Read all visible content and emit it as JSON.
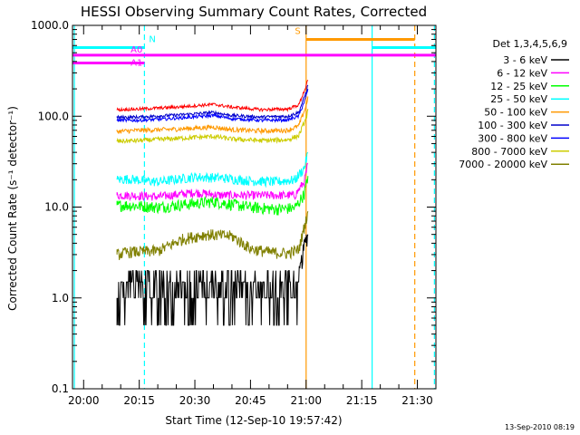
{
  "chart_data": {
    "type": "line",
    "title": "HESSI Observing Summary Count Rates, Corrected",
    "xlabel": "Start Time (12-Sep-10 19:57:42)",
    "ylabel": "Corrected Count Rate (s⁻¹ detector⁻¹)",
    "yscale": "log",
    "ylim": [
      0.1,
      1000
    ],
    "xlim_minutes": [
      -3,
      95
    ],
    "x_ticks_minutes": [
      0,
      15,
      30,
      45,
      60,
      75,
      90
    ],
    "x_tick_labels": [
      "20:00",
      "20:15",
      "20:30",
      "20:45",
      "21:00",
      "21:15",
      "21:30"
    ],
    "y_ticks": [
      0.1,
      1,
      10,
      100,
      1000
    ],
    "y_tick_labels": [
      "0.1",
      "1.0",
      "10.0",
      "100.0",
      "1000.0"
    ],
    "legend": {
      "title": "Det 1,3,4,5,6,9",
      "position": "right"
    },
    "series": [
      {
        "name": "3 - 6 keV",
        "color": "#000000",
        "x": [
          9,
          12,
          15,
          20,
          30,
          38,
          43,
          47,
          52,
          55,
          58,
          59.5,
          60.5
        ],
        "y": [
          1.0,
          1.4,
          0.9,
          1.3,
          1.2,
          1.2,
          0.7,
          0.8,
          0.7,
          0.9,
          1.6,
          3.5,
          5.0
        ]
      },
      {
        "name": "6 - 12 keV",
        "color": "#ff00ff",
        "x": [
          9,
          12,
          20,
          30,
          37,
          45,
          52,
          57,
          59.5,
          60.5
        ],
        "y": [
          13.5,
          13.5,
          13.0,
          14.5,
          13.5,
          13.5,
          13.5,
          13.5,
          19,
          30
        ]
      },
      {
        "name": "12 - 25 keV",
        "color": "#00ff00",
        "x": [
          9,
          12,
          20,
          30,
          35,
          45,
          52,
          57,
          59.5,
          60.5
        ],
        "y": [
          10.5,
          10.5,
          10,
          11,
          11.5,
          10,
          9.5,
          9.8,
          14,
          22
        ]
      },
      {
        "name": "25 - 50 keV",
        "color": "#00ffff",
        "x": [
          9,
          12,
          20,
          30,
          37,
          45,
          52,
          57,
          59.5,
          60.5
        ],
        "y": [
          20,
          20.5,
          19,
          21.5,
          21,
          19.5,
          19,
          20,
          27,
          40
        ]
      },
      {
        "name": "50 - 100 keV",
        "color": "#ff9900",
        "x": [
          9,
          15,
          25,
          35,
          40,
          48,
          55,
          58,
          60,
          60.5
        ],
        "y": [
          68,
          70,
          72,
          76,
          71,
          69,
          70,
          78,
          130,
          165
        ]
      },
      {
        "name": "100 - 300 keV",
        "color": "#0000cc",
        "x": [
          9,
          15,
          25,
          35,
          40,
          48,
          55,
          58,
          60,
          60.5
        ],
        "y": [
          97,
          98,
          103,
          110,
          102,
          98,
          100,
          110,
          185,
          220
        ]
      },
      {
        "name": "300 - 800 keV",
        "color": "#0000ff",
        "x": [
          9,
          15,
          25,
          35,
          40,
          48,
          55,
          58,
          60,
          60.5
        ],
        "y": [
          90,
          90,
          95,
          102,
          94,
          90,
          91,
          100,
          165,
          200
        ]
      },
      {
        "name": "800 - 7000 keV",
        "color": "#cccc00",
        "x": [
          9,
          15,
          25,
          35,
          40,
          48,
          55,
          58,
          60,
          60.5
        ],
        "y": [
          53,
          54,
          57,
          60,
          56,
          54,
          55,
          61,
          95,
          120
        ]
      },
      {
        "name": "7000 - 20000 keV",
        "color": "#808000",
        "x": [
          9,
          12,
          20,
          27,
          33,
          40,
          45,
          50,
          55,
          58,
          59.5,
          60.5
        ],
        "y": [
          3.0,
          3.2,
          3.3,
          4.5,
          5.0,
          4.8,
          3.5,
          3.2,
          3.1,
          3.4,
          6,
          9
        ]
      }
    ],
    "red_series": {
      "color": "#ff0000",
      "x": [
        9,
        15,
        25,
        35,
        40,
        48,
        55,
        58,
        60,
        60.5
      ],
      "y": [
        118,
        120,
        126,
        135,
        126,
        118,
        120,
        133,
        215,
        250
      ]
    },
    "vertical_lines": [
      {
        "x": -2.5,
        "color": "#00ffff",
        "dashed": false
      },
      {
        "x": 16.4,
        "color": "#00ffff",
        "dashed": true
      },
      {
        "x": 60,
        "color": "#ff9900",
        "dashed": false
      },
      {
        "x": 77.8,
        "color": "#00ffff",
        "dashed": false
      },
      {
        "x": 89.3,
        "color": "#ff9900",
        "dashed": true
      },
      {
        "x": 94.6,
        "color": "#00ffff",
        "dashed": true
      }
    ],
    "state_bars": [
      {
        "label": "N",
        "color": "#00ffff",
        "x0": -3,
        "x1": 16.4,
        "y": 570
      },
      {
        "label": "",
        "color": "#00ffff",
        "x0": 77.8,
        "x1": 95,
        "y": 570
      },
      {
        "label": "A0",
        "color": "#ff00ff",
        "x0": -3,
        "x1": 16.4,
        "y": 470
      },
      {
        "label": "",
        "color": "#ff00ff",
        "x0": 16.4,
        "x1": 95,
        "y": 470
      },
      {
        "label": "A1",
        "color": "#ff00ff",
        "x0": -3,
        "x1": 16.4,
        "y": 385
      },
      {
        "label": "S",
        "color": "#ff9900",
        "x0": 60,
        "x1": 89.3,
        "y": 700
      }
    ],
    "footer": "13-Sep-2010 08:19"
  }
}
